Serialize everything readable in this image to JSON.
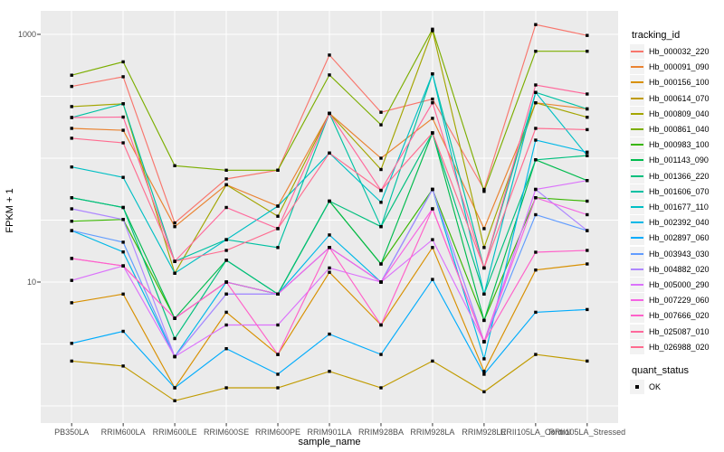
{
  "figure": {
    "background": "#ffffff",
    "panel_background": "#ebebeb",
    "grid_color": "#ffffff",
    "tick_mark_color": "#333333",
    "axis_text_color": "#4d4d4d",
    "point_color": "#000000"
  },
  "chart_data": {
    "type": "line",
    "title": "",
    "xlabel": "sample_name",
    "ylabel": "FPKM + 1",
    "y_scale": "log10",
    "ylim": [
      0.72,
      1550
    ],
    "y_tick_values": [
      1000,
      10
    ],
    "y_tick_labels": [
      "1000",
      "10"
    ],
    "y_major_gridlines": [
      1,
      10,
      100,
      1000
    ],
    "y_minor_gridlines": [
      3.1623,
      31.623,
      316.23
    ],
    "grid": "on",
    "legend_position": "right",
    "point_shape": "filled-square",
    "categories": [
      "PB350LA",
      "RRIM600LA",
      "RRIM600LE",
      "RRIM600SE",
      "RRIM600PE",
      "RRIM901LA",
      "RRIM928BA",
      "RRIM928LA",
      "RRIM928LE",
      "RRII105LA_Control",
      "RRII105LA_Stressed"
    ],
    "series": [
      {
        "name": "Hb_000032_220",
        "color": "#F8766D",
        "values": [
          380,
          455,
          30,
          68,
          80,
          680,
          235,
          300,
          56,
          1200,
          980
        ]
      },
      {
        "name": "Hb_000091_090",
        "color": "#EA8331",
        "values": [
          174,
          168,
          28,
          61,
          41,
          230,
          100,
          210,
          27,
          280,
          250
        ]
      },
      {
        "name": "Hb_000156_100",
        "color": "#D89000",
        "values": [
          6.8,
          8,
          1.4,
          5.7,
          2.6,
          12,
          4.5,
          19,
          1.9,
          12.5,
          14
        ]
      },
      {
        "name": "Hb_000614_070",
        "color": "#C09B00",
        "values": [
          2.3,
          2.1,
          1.1,
          1.4,
          1.4,
          1.9,
          1.4,
          2.3,
          1.3,
          2.6,
          2.3
        ]
      },
      {
        "name": "Hb_000809_040",
        "color": "#A3A500",
        "values": [
          261,
          275,
          11.8,
          61,
          34,
          230,
          81,
          1070,
          19,
          280,
          214
        ]
      },
      {
        "name": "Hb_000861_040",
        "color": "#7CAE00",
        "values": [
          468,
          600,
          87,
          80,
          80,
          470,
          186,
          1100,
          54,
          730,
          730
        ]
      },
      {
        "name": "Hb_000983_100",
        "color": "#39B600",
        "values": [
          31,
          32,
          5.1,
          10,
          8,
          45,
          14,
          56,
          4.9,
          48,
          45
        ]
      },
      {
        "name": "Hb_001143_090",
        "color": "#00BB4E",
        "values": [
          48,
          40,
          5.1,
          15,
          8,
          45,
          14,
          160,
          4.9,
          97,
          66
        ]
      },
      {
        "name": "Hb_001366_220",
        "color": "#00BF7D",
        "values": [
          48,
          40,
          3.5,
          15,
          8,
          45,
          28,
          160,
          8,
          97,
          105
        ]
      },
      {
        "name": "Hb_001606_070",
        "color": "#00C1A3",
        "values": [
          213,
          275,
          14.7,
          22,
          19,
          230,
          28,
          480,
          13,
          340,
          250
        ]
      },
      {
        "name": "Hb_001677_110",
        "color": "#00BFC4",
        "values": [
          85,
          70,
          11.8,
          22,
          41,
          110,
          44,
          480,
          8,
          340,
          105
        ]
      },
      {
        "name": "Hb_002392_040",
        "color": "#00B8E7",
        "values": [
          26,
          17.5,
          2.5,
          10,
          8,
          24,
          10,
          56,
          2.4,
          140,
          112
        ]
      },
      {
        "name": "Hb_002897_060",
        "color": "#00ACFC",
        "values": [
          3.2,
          4,
          1.4,
          2.9,
          1.8,
          3.8,
          2.6,
          10.5,
          1.8,
          5.7,
          6
        ]
      },
      {
        "name": "Hb_003943_030",
        "color": "#619CFF",
        "values": [
          26,
          21,
          2.5,
          8,
          8,
          19,
          10,
          56,
          3.3,
          35,
          26
        ]
      },
      {
        "name": "Hb_004882_020",
        "color": "#AE87FF",
        "values": [
          39,
          32,
          2.5,
          8,
          8,
          19,
          10,
          56,
          3.3,
          56,
          26
        ]
      },
      {
        "name": "Hb_005000_290",
        "color": "#DB72FB",
        "values": [
          10.3,
          13.5,
          2.5,
          4.5,
          4.5,
          13,
          10,
          22,
          3.3,
          56,
          66
        ]
      },
      {
        "name": "Hb_007229_060",
        "color": "#F564E3",
        "values": [
          15.5,
          13.5,
          5.1,
          10,
          8,
          19,
          10,
          39,
          3.3,
          48,
          35
        ]
      },
      {
        "name": "Hb_007666_020",
        "color": "#FF61C9",
        "values": [
          15.5,
          13.5,
          5.1,
          10,
          2.6,
          19,
          4.5,
          39,
          3.3,
          17.4,
          18
        ]
      },
      {
        "name": "Hb_025087_010",
        "color": "#FF699C",
        "values": [
          213,
          215,
          14.7,
          40,
          27,
          230,
          55,
          280,
          13,
          390,
          330
        ]
      },
      {
        "name": "Hb_026988_020",
        "color": "#FF6C90",
        "values": [
          145,
          133,
          14.7,
          18,
          27,
          110,
          55,
          160,
          13,
          174,
          170
        ]
      }
    ]
  },
  "legend": {
    "tracking": {
      "title": "tracking_id"
    },
    "quant": {
      "title": "quant_status",
      "items": [
        {
          "label": "OK"
        }
      ]
    }
  }
}
